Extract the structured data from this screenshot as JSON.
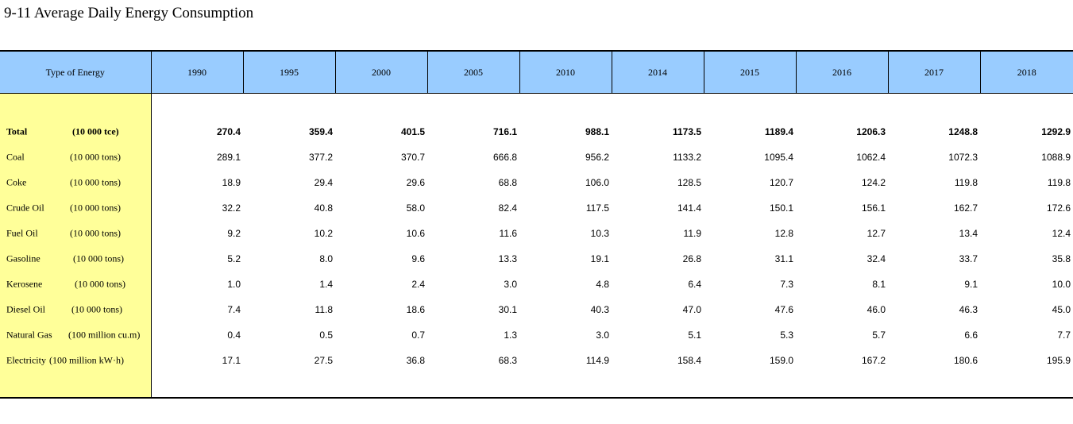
{
  "title": "9-11  Average Daily Energy Consumption",
  "header": {
    "type_label": "Type of Energy",
    "years": [
      "1990",
      "1995",
      "2000",
      "2005",
      "2010",
      "2014",
      "2015",
      "2016",
      "2017",
      "2018"
    ]
  },
  "rows": [
    {
      "label": "Total",
      "unit": "(10 000 tce)",
      "bold": true,
      "values": [
        "270.4",
        "359.4",
        "401.5",
        "716.1",
        "988.1",
        "1173.5",
        "1189.4",
        "1206.3",
        "1248.8",
        "1292.9"
      ]
    },
    {
      "label": "Coal",
      "unit": "(10 000 tons)",
      "values": [
        "289.1",
        "377.2",
        "370.7",
        "666.8",
        "956.2",
        "1133.2",
        "1095.4",
        "1062.4",
        "1072.3",
        "1088.9"
      ]
    },
    {
      "label": "Coke",
      "unit": "(10 000 tons)",
      "values": [
        "18.9",
        "29.4",
        "29.6",
        "68.8",
        "106.0",
        "128.5",
        "120.7",
        "124.2",
        "119.8",
        "119.8"
      ]
    },
    {
      "label": "Crude Oil",
      "unit": "(10 000 tons)",
      "values": [
        "32.2",
        "40.8",
        "58.0",
        "82.4",
        "117.5",
        "141.4",
        "150.1",
        "156.1",
        "162.7",
        "172.6"
      ]
    },
    {
      "label": "Fuel Oil",
      "unit": "(10 000 tons)",
      "values": [
        "9.2",
        "10.2",
        "10.6",
        "11.6",
        "10.3",
        "11.9",
        "12.8",
        "12.7",
        "13.4",
        "12.4"
      ]
    },
    {
      "label": "Gasoline",
      "unit": "(10 000 tons)",
      "values": [
        "5.2",
        "8.0",
        "9.6",
        "13.3",
        "19.1",
        "26.8",
        "31.1",
        "32.4",
        "33.7",
        "35.8"
      ]
    },
    {
      "label": "Kerosene",
      "unit": "(10 000 tons)",
      "values": [
        "1.0",
        "1.4",
        "2.4",
        "3.0",
        "4.8",
        "6.4",
        "7.3",
        "8.1",
        "9.1",
        "10.0"
      ]
    },
    {
      "label": "Diesel Oil",
      "unit": "(10 000 tons)",
      "values": [
        "7.4",
        "11.8",
        "18.6",
        "30.1",
        "40.3",
        "47.0",
        "47.6",
        "46.0",
        "46.3",
        "45.0"
      ]
    },
    {
      "label": "Natural Gas",
      "unit": "(100 million cu.m)",
      "values": [
        "0.4",
        "0.5",
        "0.7",
        "1.3",
        "3.0",
        "5.1",
        "5.3",
        "5.7",
        "6.6",
        "7.7"
      ]
    },
    {
      "label": "Electricity",
      "unit": "(100 million kW·h)",
      "values": [
        "17.1",
        "27.5",
        "36.8",
        "68.3",
        "114.9",
        "158.4",
        "159.0",
        "167.2",
        "180.6",
        "195.9"
      ]
    }
  ],
  "colors": {
    "header_bg": "#99ccff",
    "label_column_bg": "#ffff99"
  }
}
